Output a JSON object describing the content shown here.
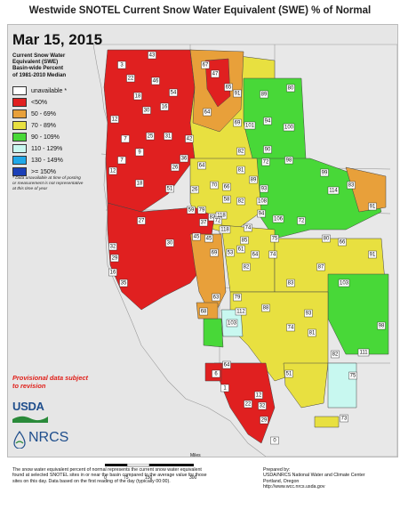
{
  "title": "Westwide SNOTEL Current Snow Water Equivalent (SWE) % of Normal",
  "date": "Mar 15, 2015",
  "legend": {
    "title_lines": [
      "Current Snow Water",
      "Equivalent (SWE)",
      "Basin-wide Percent",
      "of 1981-2010 Median"
    ],
    "classes": [
      {
        "label": "unavailable *",
        "color": "#ffffff"
      },
      {
        "label": "<50%",
        "color": "#e02020"
      },
      {
        "label": "50 - 69%",
        "color": "#e8a03a"
      },
      {
        "label": "70 - 89%",
        "color": "#e8e040"
      },
      {
        "label": "90 - 109%",
        "color": "#48d838"
      },
      {
        "label": "110 - 129%",
        "color": "#c8f8f0"
      },
      {
        "label": "130 - 149%",
        "color": "#20a8e8"
      },
      {
        "label": ">= 150%",
        "color": "#1c40b8"
      }
    ],
    "note": "* Data unavailable at time of posting or measurement is not representative at this time of year"
  },
  "provisional": "Provisional data subject to revision",
  "logos": {
    "usda": "USDA",
    "nrcs": "NRCS"
  },
  "scale": {
    "ticks": [
      "0",
      "75",
      "150",
      "300"
    ],
    "unit": "Miles"
  },
  "footer_left": "The snow water equivalent percent of normal represents the current snow water equivalent found at selected SNOTEL sites in or near the basin compared to the average value for those sites on this day. Data based on the first reading of the day (typically 00:00).",
  "footer_right": [
    "Prepared by:",
    "USDA/NRCS National Water and Climate Center",
    "Portland, Oregon",
    "http://www.wcc.nrcs.usda.gov"
  ],
  "basins": [
    {
      "value": "43"
    },
    {
      "value": "67"
    },
    {
      "value": "47"
    },
    {
      "value": "65"
    },
    {
      "value": "3"
    },
    {
      "value": "22"
    },
    {
      "value": "46"
    },
    {
      "value": "54"
    },
    {
      "value": "91"
    },
    {
      "value": "89"
    },
    {
      "value": "80"
    },
    {
      "value": "18"
    },
    {
      "value": "16"
    },
    {
      "value": "30"
    },
    {
      "value": "64"
    },
    {
      "value": "12"
    },
    {
      "value": "69"
    },
    {
      "value": "101"
    },
    {
      "value": "94"
    },
    {
      "value": "100"
    },
    {
      "value": "7"
    },
    {
      "value": "25"
    },
    {
      "value": "31"
    },
    {
      "value": "42"
    },
    {
      "value": "82"
    },
    {
      "value": "90"
    },
    {
      "value": "9"
    },
    {
      "value": "36"
    },
    {
      "value": "72"
    },
    {
      "value": "98"
    },
    {
      "value": "12"
    },
    {
      "value": "7"
    },
    {
      "value": "18"
    },
    {
      "value": "26"
    },
    {
      "value": "64"
    },
    {
      "value": "81"
    },
    {
      "value": "99"
    },
    {
      "value": "83"
    },
    {
      "value": "51"
    },
    {
      "value": "70"
    },
    {
      "value": "66"
    },
    {
      "value": "89"
    },
    {
      "value": "93"
    },
    {
      "value": "114"
    },
    {
      "value": "26"
    },
    {
      "value": "58"
    },
    {
      "value": "82"
    },
    {
      "value": "108"
    },
    {
      "value": "59"
    },
    {
      "value": "79"
    },
    {
      "value": "83"
    },
    {
      "value": "118"
    },
    {
      "value": "94"
    },
    {
      "value": "91"
    },
    {
      "value": "27"
    },
    {
      "value": "37"
    },
    {
      "value": "72"
    },
    {
      "value": "106"
    },
    {
      "value": "72"
    },
    {
      "value": "45"
    },
    {
      "value": "118"
    },
    {
      "value": "74"
    },
    {
      "value": "85"
    },
    {
      "value": "32"
    },
    {
      "value": "30"
    },
    {
      "value": "45"
    },
    {
      "value": "75"
    },
    {
      "value": "80"
    },
    {
      "value": "66"
    },
    {
      "value": "29"
    },
    {
      "value": "69"
    },
    {
      "value": "53"
    },
    {
      "value": "61"
    },
    {
      "value": "64"
    },
    {
      "value": "74"
    },
    {
      "value": "87"
    },
    {
      "value": "91"
    },
    {
      "value": "16"
    },
    {
      "value": "82"
    },
    {
      "value": "35"
    },
    {
      "value": "83"
    },
    {
      "value": "103"
    },
    {
      "value": "63"
    },
    {
      "value": "79"
    },
    {
      "value": "112"
    },
    {
      "value": "93"
    },
    {
      "value": "68"
    },
    {
      "value": "88"
    },
    {
      "value": "103"
    },
    {
      "value": "74"
    },
    {
      "value": "98"
    },
    {
      "value": "81"
    },
    {
      "value": "82"
    },
    {
      "value": "111"
    },
    {
      "value": "64"
    },
    {
      "value": "51"
    },
    {
      "value": "6"
    },
    {
      "value": "75"
    },
    {
      "value": "1"
    },
    {
      "value": "12"
    },
    {
      "value": "22"
    },
    {
      "value": "32"
    },
    {
      "value": "73"
    },
    {
      "value": "29"
    },
    {
      "value": "0"
    }
  ]
}
